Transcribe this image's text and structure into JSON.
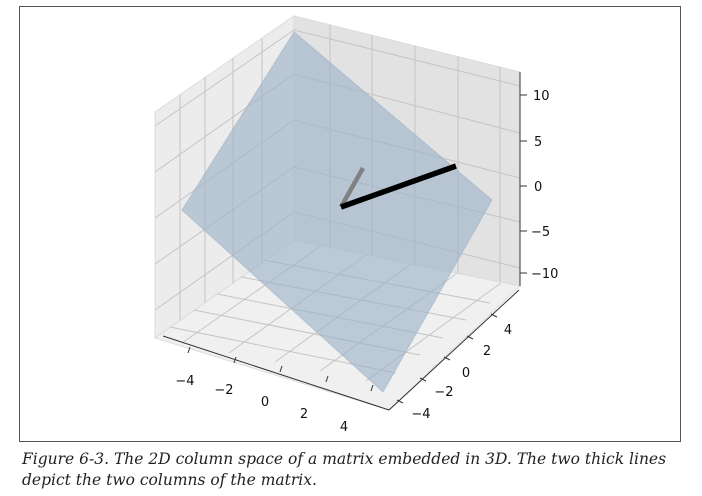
{
  "caption": "Figure 6-3. The 2D column space of a matrix embedded in 3D. The two thick lines depict the two columns of the matrix.",
  "chart_data": {
    "type": "3d-surface",
    "title": "",
    "xlabel": "",
    "ylabel": "",
    "zlabel": "",
    "xlim": [
      -5,
      5
    ],
    "ylim": [
      -5,
      5
    ],
    "zlim": [
      -12,
      12
    ],
    "x_ticks": [
      "−4",
      "−2",
      "0",
      "2",
      "4"
    ],
    "y_ticks": [
      "−4",
      "−2",
      "0",
      "2",
      "4"
    ],
    "z_ticks": [
      "−10",
      "−5",
      "0",
      "5",
      "10"
    ],
    "grid": true,
    "plane_color": "#9fb4c7",
    "column_vectors": [
      {
        "color": "#000000",
        "from": [
          0,
          0,
          0
        ],
        "to": [
          3,
          1,
          4
        ]
      },
      {
        "color": "#808080",
        "from": [
          0,
          0,
          0
        ],
        "to": [
          -1,
          2,
          3
        ]
      }
    ]
  }
}
